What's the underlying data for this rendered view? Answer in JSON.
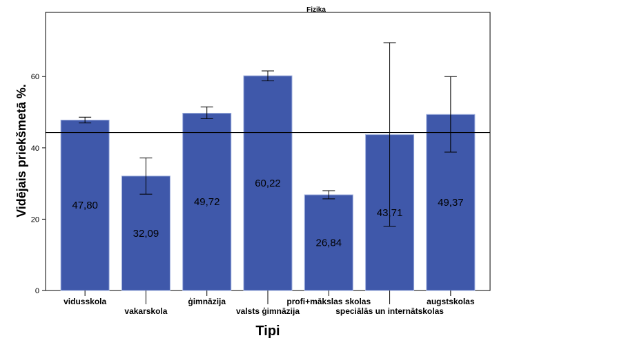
{
  "chart_data": {
    "type": "bar",
    "title": "Fizika",
    "xlabel": "Tipi",
    "ylabel": "Vidējais priekšmetā %.",
    "ylim": [
      0,
      78
    ],
    "yticks": [
      0,
      20,
      40,
      60
    ],
    "reference_line": 44.3,
    "categories": [
      "vidusskola",
      "vakarskola",
      "ģimnāzija",
      "valsts ģimnāzija",
      "profi+mākslas skolas",
      "speciālās un internātskolas",
      "augstskolas"
    ],
    "values": [
      47.8,
      32.09,
      49.72,
      60.22,
      26.84,
      43.71,
      49.37
    ],
    "value_labels": [
      "47,80",
      "32,09",
      "49,72",
      "60,22",
      "26,84",
      "43,71",
      "49,37"
    ],
    "error_low": [
      47.0,
      27.0,
      48.2,
      58.8,
      25.7,
      18.0,
      38.8
    ],
    "error_high": [
      48.6,
      37.2,
      51.5,
      61.6,
      28.0,
      69.5,
      60.0
    ],
    "label_rows": [
      0,
      1,
      0,
      1,
      0,
      1,
      0
    ],
    "bar_color": "#3F58AA",
    "bar_edge_color": "#9FB0DE"
  }
}
